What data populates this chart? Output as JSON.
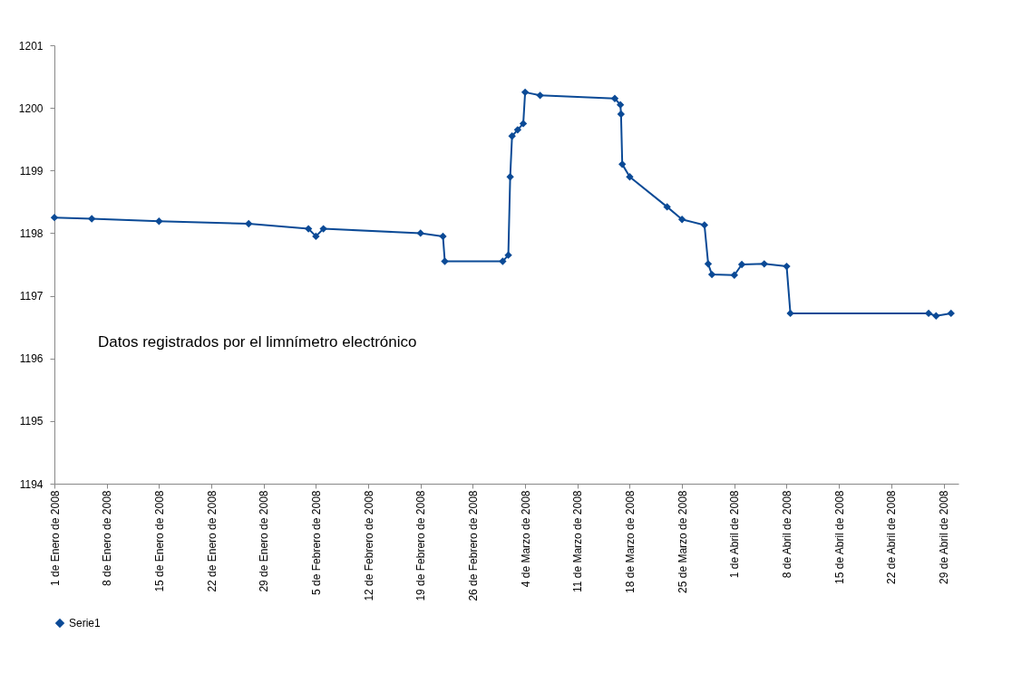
{
  "chart_data": {
    "type": "line",
    "annotations": [
      "Datos registrados por el limnímetro electrónico"
    ],
    "x": [
      "2008-01-01",
      "2008-01-06",
      "2008-01-15",
      "2008-01-27",
      "2008-02-04",
      "2008-02-05",
      "2008-02-06",
      "2008-02-19",
      "2008-02-22",
      "2008-02-22T06:00",
      "2008-03-01",
      "2008-03-01T18:00",
      "2008-03-02",
      "2008-03-02T06:00",
      "2008-03-03",
      "2008-03-03T18:00",
      "2008-03-04",
      "2008-03-06",
      "2008-03-16",
      "2008-03-16T18:00",
      "2008-03-16T20:00",
      "2008-03-17",
      "2008-03-18",
      "2008-03-23",
      "2008-03-25",
      "2008-03-28",
      "2008-03-28T12:00",
      "2008-03-29",
      "2008-04-01",
      "2008-04-02",
      "2008-04-05",
      "2008-04-08",
      "2008-04-08T12:00",
      "2008-04-27",
      "2008-04-28",
      "2008-04-30"
    ],
    "series": [
      {
        "name": "Serie1",
        "color": "#0b4a96",
        "values": [
          1198.25,
          1198.23,
          1198.19,
          1198.15,
          1198.07,
          1197.95,
          1198.07,
          1198.0,
          1197.95,
          1197.55,
          1197.55,
          1197.65,
          1198.9,
          1199.55,
          1199.65,
          1199.75,
          1200.25,
          1200.2,
          1200.15,
          1200.05,
          1199.9,
          1199.1,
          1198.9,
          1198.42,
          1198.22,
          1198.13,
          1197.51,
          1197.34,
          1197.33,
          1197.5,
          1197.51,
          1197.47,
          1196.72,
          1196.72,
          1196.68,
          1196.72
        ]
      }
    ],
    "xlim": [
      "2008-01-01",
      "2008-05-01"
    ],
    "xticks": [
      {
        "value": "2008-01-01",
        "label": "1 de Enero de 2008"
      },
      {
        "value": "2008-01-08",
        "label": "8 de Enero de 2008"
      },
      {
        "value": "2008-01-15",
        "label": "15 de Enero de 2008"
      },
      {
        "value": "2008-01-22",
        "label": "22 de Enero de 2008"
      },
      {
        "value": "2008-01-29",
        "label": "29 de Enero de 2008"
      },
      {
        "value": "2008-02-05",
        "label": "5 de Febrero de 2008"
      },
      {
        "value": "2008-02-12",
        "label": "12 de Febrero de 2008"
      },
      {
        "value": "2008-02-19",
        "label": "19 de Febrero de 2008"
      },
      {
        "value": "2008-02-26",
        "label": "26 de Febrero de 2008"
      },
      {
        "value": "2008-03-04",
        "label": "4 de Marzo de 2008"
      },
      {
        "value": "2008-03-11",
        "label": "11 de Marzo de 2008"
      },
      {
        "value": "2008-03-18",
        "label": "18 de Marzo de 2008"
      },
      {
        "value": "2008-03-25",
        "label": "25 de Marzo de 2008"
      },
      {
        "value": "2008-04-01",
        "label": "1 de Abril de 2008"
      },
      {
        "value": "2008-04-08",
        "label": "8 de Abril de 2008"
      },
      {
        "value": "2008-04-15",
        "label": "15 de Abril de 2008"
      },
      {
        "value": "2008-04-22",
        "label": "22 de Abril de 2008"
      },
      {
        "value": "2008-04-29",
        "label": "29 de Abril de 2008"
      }
    ],
    "ylim": [
      1194,
      1201
    ],
    "yticks": [
      1194,
      1195,
      1196,
      1197,
      1198,
      1199,
      1200,
      1201
    ],
    "grid": false,
    "legend": "bottom",
    "marker": "diamond",
    "line_style": "solid"
  }
}
